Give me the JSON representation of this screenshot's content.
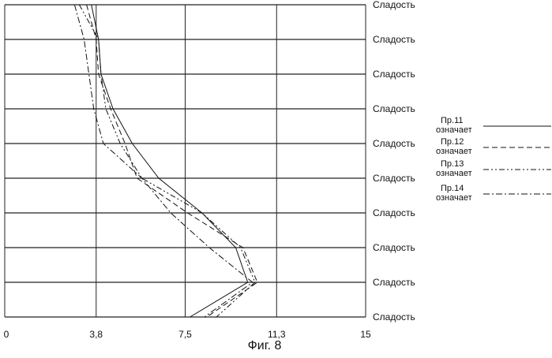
{
  "caption": "Фиг. 8",
  "chart_data": {
    "type": "line",
    "orientation": "horizontal-values",
    "categories": [
      "Сладость",
      "Сладость",
      "Сладость",
      "Сладость",
      "Сладость",
      "Сладость",
      "Сладость",
      "Сладость",
      "Сладость",
      "Сладость"
    ],
    "xticks": [
      "0",
      "3,8",
      "7,5",
      "11,3",
      "15"
    ],
    "xlim": [
      0,
      15
    ],
    "grid": true,
    "legend_position": "right",
    "series": [
      {
        "name": "Пр.11 означает",
        "dash": "solid",
        "values": [
          3.6,
          3.9,
          4.0,
          4.5,
          5.3,
          6.4,
          8.2,
          9.6,
          10.1,
          7.7
        ]
      },
      {
        "name": "Пр.12 означает",
        "dash": "dash",
        "values": [
          3.4,
          3.8,
          3.9,
          4.4,
          5.0,
          5.5,
          7.6,
          9.9,
          10.5,
          8.4
        ]
      },
      {
        "name": "Пр.13 означает",
        "dash": "dashdotdot",
        "values": [
          3.1,
          3.9,
          4.0,
          4.2,
          4.8,
          5.7,
          8.2,
          9.8,
          10.4,
          8.8
        ]
      },
      {
        "name": "Пр.14 означает",
        "dash": "dashdot",
        "values": [
          2.9,
          3.3,
          3.5,
          3.7,
          4.1,
          5.7,
          6.9,
          8.5,
          10.3,
          8.3
        ]
      }
    ]
  }
}
